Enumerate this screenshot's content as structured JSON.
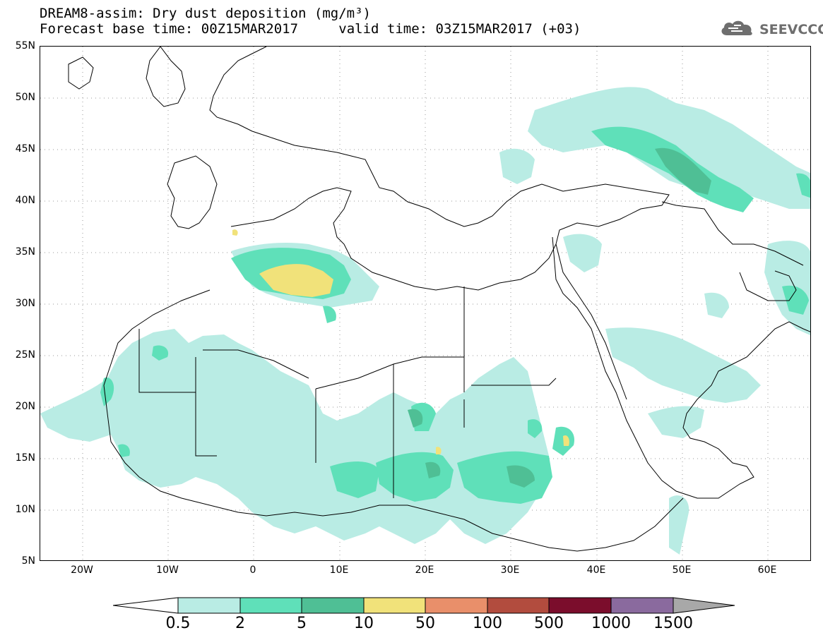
{
  "title": {
    "line1": "DREAM8-assim: Dry dust deposition (mg/m³)",
    "line2_left": "Forecast base time: 00Z15MAR2017",
    "line2_right": "valid time: 03Z15MAR2017 (+03)"
  },
  "logo": {
    "text": "SEEVCCC",
    "icon": "cloud-icon"
  },
  "axes": {
    "lat_labels": [
      "55N",
      "50N",
      "45N",
      "40N",
      "35N",
      "30N",
      "25N",
      "20N",
      "15N",
      "10N",
      "5N"
    ],
    "lon_labels": [
      "20W",
      "10W",
      "0",
      "10E",
      "20E",
      "30E",
      "40E",
      "50E",
      "60E"
    ],
    "lat_range": [
      5,
      55
    ],
    "lon_range": [
      -25,
      65
    ],
    "grid": "dotted"
  },
  "legend": {
    "labels": [
      "0.5",
      "2",
      "5",
      "10",
      "50",
      "100",
      "500",
      "1000",
      "1500"
    ],
    "colors": [
      "#ffffff",
      "#b9ece4",
      "#5fe0b9",
      "#4fbf95",
      "#f1e27a",
      "#e98f6a",
      "#b24c3e",
      "#7b0d2c",
      "#8a6a9e",
      "#a8a8a8"
    ]
  },
  "map_regions": {
    "level_colors": {
      "low": "#b9ece4",
      "mid": "#5fe0b9",
      "high": "#4fbf95",
      "very_high": "#f1e27a"
    }
  }
}
